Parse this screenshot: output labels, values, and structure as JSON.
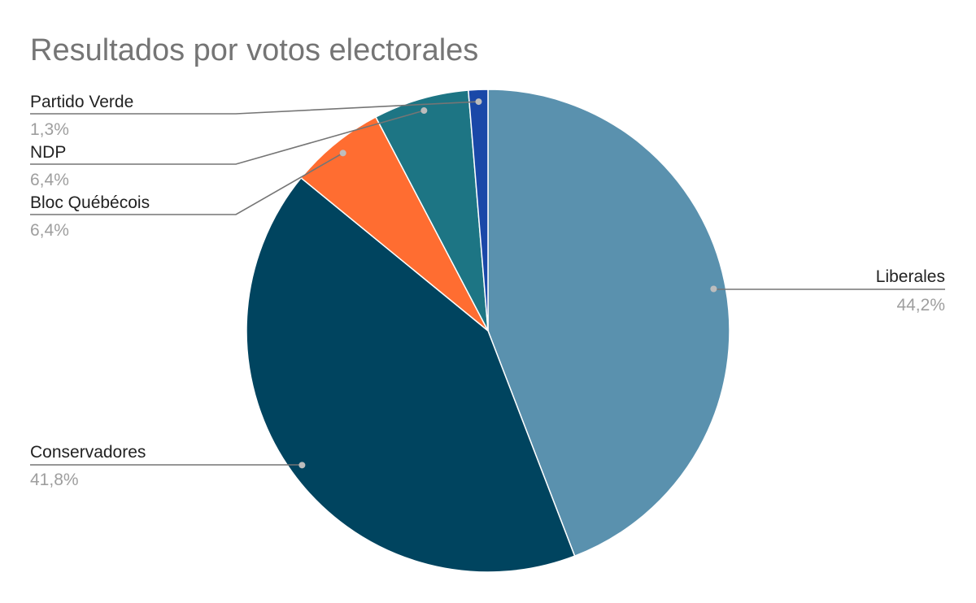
{
  "chart_data": {
    "type": "pie",
    "title": "Resultados por votos electorales",
    "slices": [
      {
        "label": "Liberales",
        "value": 44.2,
        "value_label": "44,2%",
        "color": "#5a91ae"
      },
      {
        "label": "Conservadores",
        "value": 41.8,
        "value_label": "41,8%",
        "color": "#00445f"
      },
      {
        "label": "Bloc Québécois",
        "value": 6.4,
        "value_label": "6,4%",
        "color": "#ff6d31"
      },
      {
        "label": "NDP",
        "value": 6.4,
        "value_label": "6,4%",
        "color": "#1d7584"
      },
      {
        "label": "Partido Verde",
        "value": 1.3,
        "value_label": "1,3%",
        "color": "#1a48a8"
      }
    ],
    "legend": "none",
    "labels": "outside with leader lines"
  }
}
